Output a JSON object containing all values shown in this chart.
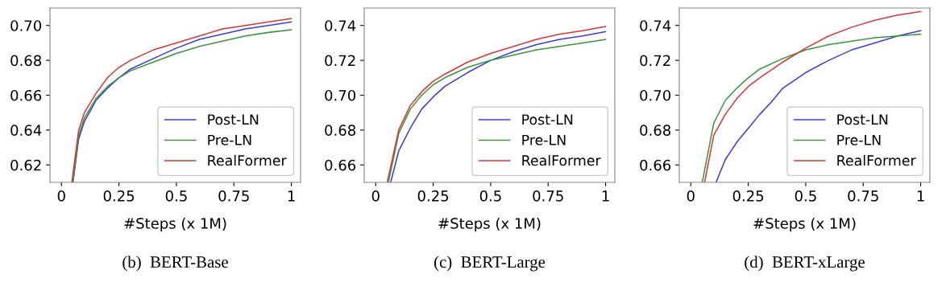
{
  "chart_data": [
    {
      "type": "line",
      "xlabel": "#Steps (x 1M)",
      "annotations": [
        "(b)  BERT-Base"
      ],
      "legend": "bottom right",
      "grid": false,
      "xlim": [
        -0.05,
        1.04
      ],
      "ylim": [
        0.61,
        0.71
      ],
      "xticks": [
        0,
        {
          "value": 0.25,
          "label": "0.25"
        },
        {
          "value": 0.5,
          "label": "0.5"
        },
        {
          "value": 0.75,
          "label": "0.75"
        },
        1
      ],
      "yticks": [
        {
          "value": 0.62,
          "label": "0.62"
        },
        {
          "value": 0.64,
          "label": "0.64"
        },
        {
          "value": 0.66,
          "label": "0.66"
        },
        {
          "value": 0.68,
          "label": "0.68"
        },
        {
          "value": 0.7,
          "label": "0.70"
        }
      ],
      "series": [
        {
          "name": "Post-LN",
          "color": "#3b3bdc",
          "x": [
            0.05,
            0.075,
            0.1,
            0.15,
            0.2,
            0.25,
            0.3,
            0.4,
            0.5,
            0.6,
            0.7,
            0.8,
            0.9,
            1.0
          ],
          "values": [
            0.61,
            0.635,
            0.645,
            0.657,
            0.664,
            0.67,
            0.675,
            0.681,
            0.687,
            0.692,
            0.695,
            0.698,
            0.7,
            0.702
          ]
        },
        {
          "name": "Pre-LN",
          "color": "#3a963a",
          "x": [
            0.05,
            0.075,
            0.1,
            0.15,
            0.2,
            0.25,
            0.3,
            0.4,
            0.5,
            0.6,
            0.7,
            0.8,
            0.9,
            1.0
          ],
          "values": [
            0.61,
            0.637,
            0.647,
            0.658,
            0.665,
            0.67,
            0.674,
            0.679,
            0.684,
            0.688,
            0.691,
            0.694,
            0.696,
            0.6975
          ]
        },
        {
          "name": "RealFormer",
          "color": "#dc3535",
          "x": [
            0.045,
            0.075,
            0.1,
            0.15,
            0.2,
            0.25,
            0.3,
            0.4,
            0.5,
            0.6,
            0.7,
            0.8,
            0.9,
            1.0
          ],
          "values": [
            0.61,
            0.64,
            0.65,
            0.661,
            0.67,
            0.676,
            0.68,
            0.686,
            0.69,
            0.694,
            0.698,
            0.7,
            0.702,
            0.704
          ]
        }
      ]
    },
    {
      "type": "line",
      "xlabel": "#Steps (x 1M)",
      "annotations": [
        "(c)  BERT-Large"
      ],
      "legend": "bottom right",
      "grid": false,
      "xlim": [
        -0.05,
        1.04
      ],
      "ylim": [
        0.65,
        0.75
      ],
      "xticks": [
        0,
        {
          "value": 0.25,
          "label": "0.25"
        },
        {
          "value": 0.5,
          "label": "0.5"
        },
        {
          "value": 0.75,
          "label": "0.75"
        },
        1
      ],
      "yticks": [
        {
          "value": 0.66,
          "label": "0.66"
        },
        {
          "value": 0.68,
          "label": "0.68"
        },
        {
          "value": 0.7,
          "label": "0.70"
        },
        {
          "value": 0.72,
          "label": "0.72"
        },
        {
          "value": 0.74,
          "label": "0.74"
        }
      ],
      "series": [
        {
          "name": "Post-LN",
          "color": "#3b3bdc",
          "x": [
            0.065,
            0.1,
            0.15,
            0.2,
            0.25,
            0.3,
            0.4,
            0.5,
            0.6,
            0.7,
            0.8,
            0.9,
            1.0
          ],
          "values": [
            0.65,
            0.668,
            0.681,
            0.692,
            0.699,
            0.705,
            0.713,
            0.72,
            0.725,
            0.729,
            0.732,
            0.734,
            0.7365
          ]
        },
        {
          "name": "Pre-LN",
          "color": "#3a963a",
          "x": [
            0.055,
            0.1,
            0.15,
            0.2,
            0.25,
            0.3,
            0.4,
            0.5,
            0.6,
            0.7,
            0.8,
            0.9,
            1.0
          ],
          "values": [
            0.65,
            0.678,
            0.692,
            0.7,
            0.706,
            0.71,
            0.716,
            0.72,
            0.723,
            0.726,
            0.728,
            0.73,
            0.732
          ]
        },
        {
          "name": "RealFormer",
          "color": "#dc3535",
          "x": [
            0.05,
            0.1,
            0.15,
            0.2,
            0.25,
            0.3,
            0.4,
            0.5,
            0.6,
            0.7,
            0.8,
            0.9,
            1.0
          ],
          "values": [
            0.65,
            0.68,
            0.694,
            0.702,
            0.708,
            0.712,
            0.719,
            0.724,
            0.728,
            0.732,
            0.735,
            0.737,
            0.7395
          ]
        }
      ]
    },
    {
      "type": "line",
      "xlabel": "#Steps (x 1M)",
      "annotations": [
        "(d)  BERT-xLarge"
      ],
      "legend": "bottom right",
      "grid": false,
      "xlim": [
        -0.05,
        1.04
      ],
      "ylim": [
        0.65,
        0.75
      ],
      "xticks": [
        0,
        {
          "value": 0.25,
          "label": "0.25"
        },
        {
          "value": 0.5,
          "label": "0.5"
        },
        {
          "value": 0.75,
          "label": "0.75"
        },
        1
      ],
      "yticks": [
        {
          "value": 0.66,
          "label": "0.66"
        },
        {
          "value": 0.68,
          "label": "0.68"
        },
        {
          "value": 0.7,
          "label": "0.70"
        },
        {
          "value": 0.72,
          "label": "0.72"
        },
        {
          "value": 0.74,
          "label": "0.74"
        }
      ],
      "series": [
        {
          "name": "Post-LN",
          "color": "#3b3bdc",
          "x": [
            0.11,
            0.15,
            0.2,
            0.25,
            0.3,
            0.35,
            0.4,
            0.5,
            0.6,
            0.7,
            0.8,
            0.9,
            1.0
          ],
          "values": [
            0.65,
            0.663,
            0.673,
            0.681,
            0.689,
            0.696,
            0.704,
            0.713,
            0.72,
            0.726,
            0.73,
            0.734,
            0.737
          ]
        },
        {
          "name": "Pre-LN",
          "color": "#3a963a",
          "x": [
            0.05,
            0.1,
            0.15,
            0.2,
            0.25,
            0.3,
            0.4,
            0.5,
            0.6,
            0.7,
            0.8,
            0.9,
            1.0
          ],
          "values": [
            0.65,
            0.684,
            0.697,
            0.704,
            0.71,
            0.715,
            0.721,
            0.726,
            0.729,
            0.731,
            0.733,
            0.734,
            0.735
          ]
        },
        {
          "name": "RealFormer",
          "color": "#dc3535",
          "x": [
            0.06,
            0.1,
            0.15,
            0.2,
            0.25,
            0.3,
            0.4,
            0.5,
            0.6,
            0.7,
            0.8,
            0.9,
            1.0
          ],
          "values": [
            0.65,
            0.677,
            0.689,
            0.698,
            0.705,
            0.71,
            0.719,
            0.727,
            0.734,
            0.739,
            0.743,
            0.746,
            0.748
          ]
        }
      ]
    }
  ]
}
